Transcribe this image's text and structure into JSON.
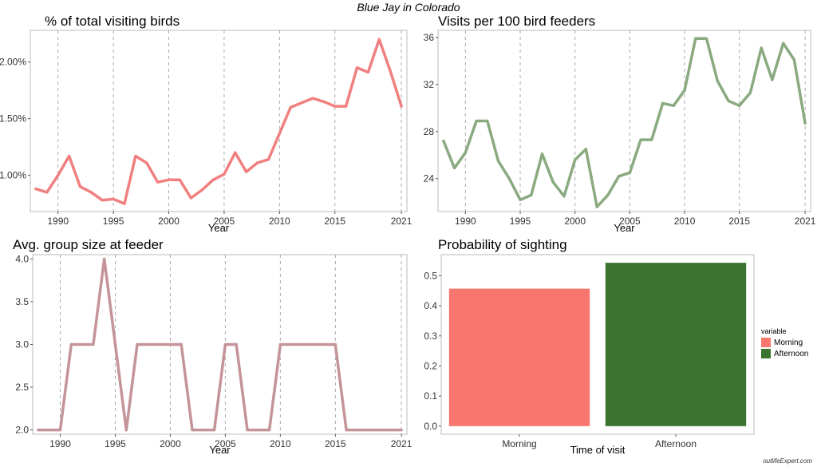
{
  "page": {
    "title": "Blue Jay in Colorado",
    "watermark": "outlifeExpert.com"
  },
  "chart_data": [
    {
      "type": "line",
      "title": "% of total visiting birds",
      "xlabel": "Year",
      "ylabel": "",
      "x_ticks": [
        1990,
        1995,
        2000,
        2005,
        2010,
        2015,
        2021
      ],
      "y_ticks": [
        "1.00%",
        "1.50%",
        "2.00%"
      ],
      "y_tick_values": [
        1.0,
        1.5,
        2.0
      ],
      "xlim": [
        1987.5,
        2021.5
      ],
      "ylim": [
        0.68,
        2.28
      ],
      "grid": "vertical dashed",
      "color": "#F08080",
      "x": [
        1988,
        1989,
        1990,
        1991,
        1992,
        1993,
        1994,
        1995,
        1996,
        1997,
        1998,
        1999,
        2000,
        2001,
        2002,
        2003,
        2004,
        2005,
        2006,
        2007,
        2008,
        2009,
        2010,
        2011,
        2012,
        2013,
        2014,
        2015,
        2016,
        2017,
        2018,
        2019,
        2020,
        2021
      ],
      "y": [
        0.88,
        0.85,
        1.0,
        1.17,
        0.9,
        0.85,
        0.78,
        0.79,
        0.75,
        1.17,
        1.11,
        0.94,
        0.96,
        0.96,
        0.8,
        0.87,
        0.96,
        1.01,
        1.2,
        1.03,
        1.11,
        1.14,
        1.37,
        1.6,
        1.64,
        1.68,
        1.65,
        1.61,
        1.61,
        1.95,
        1.91,
        2.2,
        1.92,
        1.61
      ]
    },
    {
      "type": "line",
      "title": "Visits per 100 bird feeders",
      "xlabel": "Year",
      "ylabel": "",
      "x_ticks": [
        1990,
        1995,
        2000,
        2005,
        2010,
        2015,
        2021
      ],
      "y_ticks": [
        "24",
        "28",
        "32",
        "36"
      ],
      "y_tick_values": [
        24,
        28,
        32,
        36
      ],
      "xlim": [
        1987.5,
        2021.5
      ],
      "ylim": [
        21.2,
        36.6
      ],
      "grid": "vertical dashed",
      "color": "#8AAA80",
      "x": [
        1988,
        1989,
        1990,
        1991,
        1992,
        1993,
        1994,
        1995,
        1996,
        1997,
        1998,
        1999,
        2000,
        2001,
        2002,
        2003,
        2004,
        2005,
        2006,
        2007,
        2008,
        2009,
        2010,
        2011,
        2012,
        2013,
        2014,
        2015,
        2016,
        2017,
        2018,
        2019,
        2020,
        2021
      ],
      "y": [
        27.2,
        24.9,
        26.2,
        28.9,
        28.9,
        25.5,
        24.0,
        22.2,
        22.6,
        26.1,
        23.7,
        22.5,
        25.6,
        26.5,
        21.6,
        22.6,
        24.2,
        24.5,
        27.3,
        27.3,
        30.4,
        30.2,
        31.5,
        35.9,
        35.9,
        32.3,
        30.6,
        30.2,
        31.3,
        35.1,
        32.4,
        35.5,
        34.1,
        28.7
      ]
    },
    {
      "type": "line",
      "title": "Avg. group size at feeder",
      "xlabel": "Year",
      "ylabel": "",
      "x_ticks": [
        1990,
        1995,
        2000,
        2005,
        2010,
        2015,
        2021
      ],
      "y_ticks": [
        "2.0",
        "2.5",
        "3.0",
        "3.5",
        "4.0"
      ],
      "y_tick_values": [
        2.0,
        2.5,
        3.0,
        3.5,
        4.0
      ],
      "xlim": [
        1987.5,
        2021.5
      ],
      "ylim": [
        1.95,
        4.05
      ],
      "grid": "vertical dashed",
      "color": "#C49498",
      "x": [
        1988,
        1989,
        1990,
        1991,
        1992,
        1993,
        1994,
        1995,
        1996,
        1997,
        1998,
        1999,
        2000,
        2001,
        2002,
        2003,
        2004,
        2005,
        2006,
        2007,
        2008,
        2009,
        2010,
        2011,
        2012,
        2013,
        2014,
        2015,
        2016,
        2017,
        2018,
        2019,
        2020,
        2021
      ],
      "y": [
        2,
        2,
        2,
        3,
        3,
        3,
        4,
        3,
        2,
        3,
        3,
        3,
        3,
        3,
        2,
        2,
        2,
        3,
        3,
        2,
        2,
        2,
        3,
        3,
        3,
        3,
        3,
        3,
        2,
        2,
        2,
        2,
        2,
        2
      ]
    },
    {
      "type": "bar",
      "title": "Probability of sighting",
      "xlabel": "Time of visit",
      "ylabel": "",
      "categories": [
        "Morning",
        "Afternoon"
      ],
      "values": [
        0.457,
        0.543
      ],
      "colors": [
        "#F8766D",
        "#3A7430"
      ],
      "y_ticks": [
        "0.0",
        "0.1",
        "0.2",
        "0.3",
        "0.4",
        "0.5"
      ],
      "y_tick_values": [
        0,
        0.1,
        0.2,
        0.3,
        0.4,
        0.5
      ],
      "ylim": [
        -0.027,
        0.57
      ],
      "grid": "none",
      "legend": {
        "title": "variable",
        "placement": "right",
        "entries": [
          {
            "label": "Morning",
            "color": "#F8766D"
          },
          {
            "label": "Afternoon",
            "color": "#3A7430"
          }
        ]
      }
    }
  ]
}
